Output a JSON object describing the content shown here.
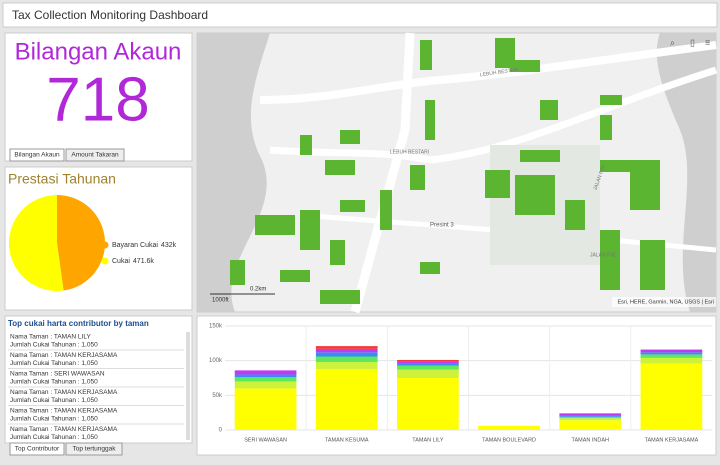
{
  "header": {
    "title": "Tax Collection Monitoring Dashboard"
  },
  "indicator": {
    "title": "Bilangan Akaun",
    "value": "718",
    "tabs": [
      "Bilangan Akaun",
      "Amount Takaran"
    ]
  },
  "pie_panel": {
    "chart_data": {
      "type": "pie",
      "title": "Prestasi Tahunan",
      "categories": [
        "Bayaran Cukai",
        "Cukai"
      ],
      "values": [
        432,
        471.6
      ],
      "value_labels": [
        "432k",
        "471.6k"
      ],
      "colors": [
        "#ffa500",
        "#ffff00"
      ],
      "legend": "right"
    }
  },
  "map": {
    "labels": [
      "LEBUH BESTARI",
      "LEBUH BESTARI",
      "Presint 3",
      "JALAN P3E",
      "JALAN P3D"
    ],
    "scale": [
      "0.2km",
      "1000ft"
    ],
    "attribution": "Esri, HERE, Garmin, NGA, USGS | Esri"
  },
  "list": {
    "title": "Top cukai harta contributor by taman",
    "items": [
      [
        "Nama Taman : TAMAN LILY",
        "Jumlah Cukai Tahunan : 1,050"
      ],
      [
        "Nama Taman : TAMAN KERJASAMA",
        "Jumlah Cukai Tahunan : 1,050"
      ],
      [
        "Nama Taman : SERI WAWASAN",
        "Jumlah Cukai Tahunan : 1,050"
      ],
      [
        "Nama Taman : TAMAN KERJASAMA",
        "Jumlah Cukai Tahunan : 1,050"
      ],
      [
        "Nama Taman : TAMAN KERJASAMA",
        "Jumlah Cukai Tahunan : 1,050"
      ],
      [
        "Nama Taman : TAMAN KERJASAMA",
        "Jumlah Cukai Tahunan : 1,050"
      ]
    ],
    "tabs": [
      "Top Contributor",
      "Top tertunggak"
    ]
  },
  "bar_panel": {
    "chart_data": {
      "type": "bar",
      "stacked": true,
      "categories": [
        "SERI WAWASAN",
        "TAMAN KESUMA",
        "TAMAN LILY",
        "TAMAN BOULEVARD",
        "TAMAN INDAH",
        "TAMAN KERJASAMA"
      ],
      "series": [
        {
          "color": "#ffff00",
          "values": [
            60000,
            88000,
            75000,
            6000,
            14000,
            96000
          ]
        },
        {
          "color": "#ccf23a",
          "values": [
            10000,
            10000,
            12000,
            0,
            3000,
            8000
          ]
        },
        {
          "color": "#5fe85f",
          "values": [
            6000,
            8000,
            6000,
            0,
            2000,
            5000
          ]
        },
        {
          "color": "#3a8cf2",
          "values": [
            4000,
            6000,
            3000,
            0,
            2000,
            3000
          ]
        },
        {
          "color": "#c03af2",
          "values": [
            6000,
            5000,
            3000,
            0,
            3000,
            4000
          ]
        },
        {
          "color": "#f23a3a",
          "values": [
            0,
            4000,
            2000,
            0,
            0,
            0
          ]
        }
      ],
      "ylim": [
        0,
        150000
      ],
      "yticks": [
        0,
        {
          "value": 50000,
          "label": "50k"
        },
        {
          "value": 100000,
          "label": "100k"
        },
        {
          "value": 150000,
          "label": "150k"
        }
      ],
      "grid": true
    }
  }
}
